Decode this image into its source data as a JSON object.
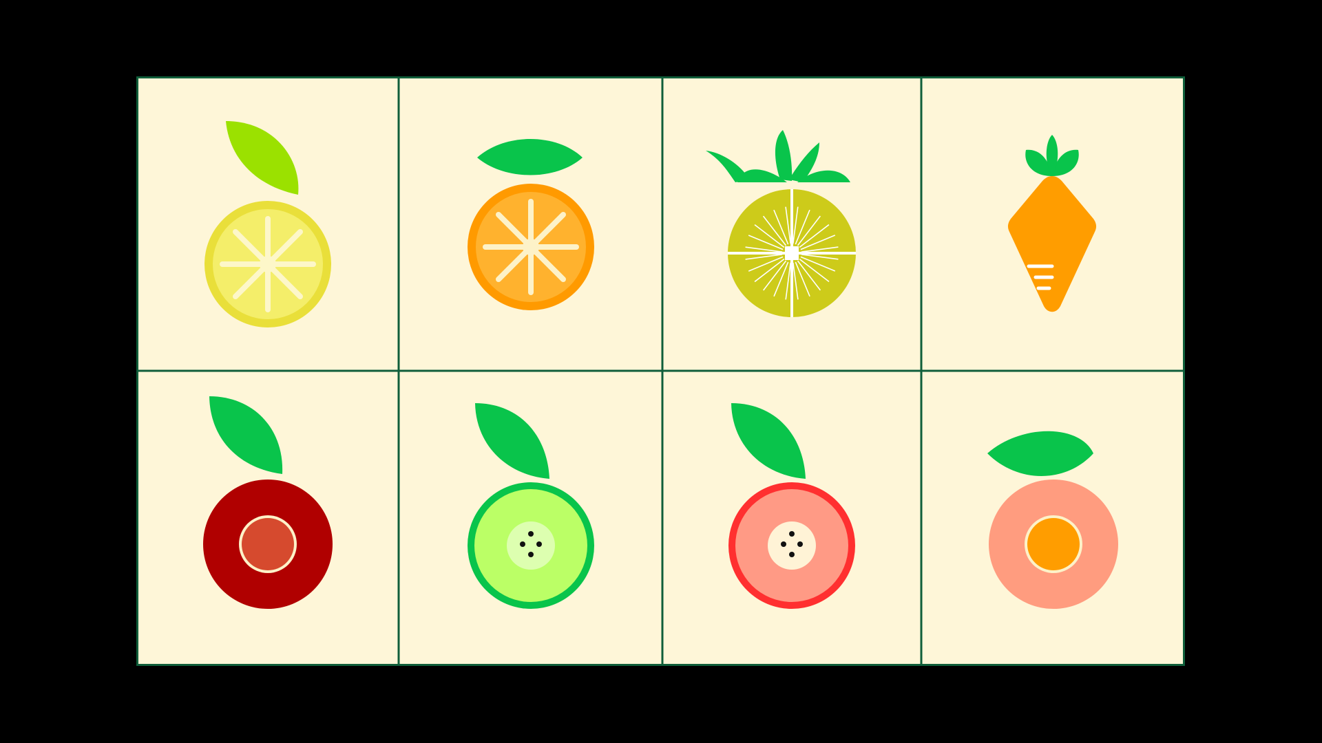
{
  "grid": {
    "background": "#FEF6D8",
    "border_color": "#0F5E3A"
  },
  "tiles": [
    {
      "name": "lemon",
      "rind": "#E9DF3A",
      "flesh": "#F4EE6A",
      "spokes": "#FDF7C9",
      "leaf": "#9BE100"
    },
    {
      "name": "orange",
      "rind": "#FF9A00",
      "flesh": "#FFB22E",
      "spokes": "#FDF2C8",
      "leaf": "#09C44B"
    },
    {
      "name": "pineapple",
      "flesh": "#CDCB1A",
      "lines": "#FFFFFF",
      "leaf": "#09C44B"
    },
    {
      "name": "carrot",
      "body": "#FF9D00",
      "lines": "#FFFFFF",
      "leaf": "#09C44B"
    },
    {
      "name": "red-fruit",
      "outer": "#B00000",
      "core": "#D64A2E",
      "ring": "#FDF2C8",
      "leaf": "#09C44B"
    },
    {
      "name": "green-apple",
      "rind": "#09C44B",
      "flesh": "#BBFF66",
      "core": "#DDFFB0",
      "seeds": "#111111",
      "leaf": "#09C44B"
    },
    {
      "name": "pink-apple",
      "rind": "#FF3030",
      "flesh": "#FF9A85",
      "core": "#FFF3D6",
      "seeds": "#111111",
      "leaf": "#09C44B"
    },
    {
      "name": "peach",
      "outer": "#FF9C7F",
      "core": "#FF9D00",
      "ring": "#FDF2C8",
      "leaf": "#09C44B"
    }
  ]
}
